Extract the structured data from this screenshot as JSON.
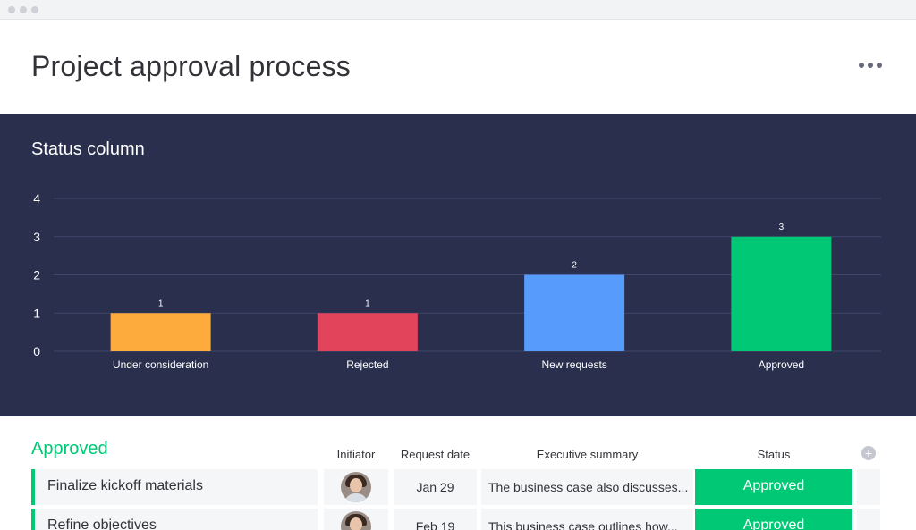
{
  "page": {
    "title": "Project approval process"
  },
  "chart_panel": {
    "title": "Status column"
  },
  "chart_data": {
    "type": "bar",
    "title": "Status column",
    "categories": [
      "Under consideration",
      "Rejected",
      "New requests",
      "Approved"
    ],
    "values": [
      1,
      1,
      2,
      3
    ],
    "colors": [
      "#fdab3d",
      "#e2445c",
      "#579bfc",
      "#00c875"
    ],
    "yticks": [
      "0",
      "1",
      "2",
      "3",
      "4"
    ],
    "ylim": [
      0,
      4
    ],
    "grid": true,
    "xlabel": "",
    "ylabel": ""
  },
  "group": {
    "title": "Approved",
    "columns": {
      "initiator": "Initiator",
      "request_date": "Request date",
      "executive_summary": "Executive summary",
      "status": "Status"
    },
    "rows": [
      {
        "name": "Finalize kickoff materials",
        "date": "Jan 29",
        "summary": "The business case also discusses...",
        "status": "Approved"
      },
      {
        "name": "Refine objectives",
        "date": "Feb 19",
        "summary": "This business case outlines how...",
        "status": "Approved"
      }
    ]
  },
  "icons": {
    "more": "more-horizontal-icon",
    "add_column": "plus-circle-icon"
  },
  "colors": {
    "panel_bg": "#292f4c",
    "approved": "#00c875",
    "group_accent": "#00c875"
  }
}
